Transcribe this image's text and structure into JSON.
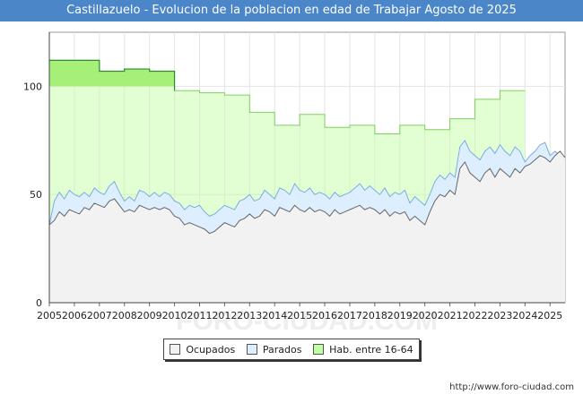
{
  "title": "Castillazuelo - Evolucion de la poblacion en edad de Trabajar Agosto de 2025",
  "credit": "http://www.foro-ciudad.com",
  "watermark": "FORO-CIUDAD.COM",
  "legend": [
    {
      "label": "Ocupados",
      "color": "#f2f2f2"
    },
    {
      "label": "Parados",
      "color": "#ddeeff"
    },
    {
      "label": "Hab. entre 16-64",
      "color": "#bfff9f"
    }
  ],
  "chart_data": {
    "type": "area",
    "title": "Castillazuelo - Evolucion de la poblacion en edad de Trabajar Agosto de 2025",
    "xlim": [
      2005,
      2025.6
    ],
    "ylim": [
      0,
      125
    ],
    "x_ticks": [
      "2005",
      "2006",
      "2007",
      "2008",
      "2009",
      "2010",
      "2011",
      "2012",
      "2013",
      "2014",
      "2015",
      "2016",
      "2017",
      "2018",
      "2019",
      "2020",
      "2021",
      "2022",
      "2023",
      "2024",
      "2025"
    ],
    "y_ticks": [
      0,
      50,
      100
    ],
    "grid": true,
    "legend_position": "bottom",
    "series": [
      {
        "name": "Hab. entre 16-64",
        "color": "#bfff9f",
        "x": [
          2005,
          2006,
          2007,
          2008,
          2009,
          2010,
          2011,
          2012,
          2013,
          2014,
          2015,
          2016,
          2017,
          2018,
          2019,
          2020,
          2021,
          2022,
          2023,
          2024
        ],
        "values": [
          112,
          112,
          107,
          108,
          107,
          98,
          97,
          96,
          88,
          82,
          87,
          81,
          82,
          78,
          82,
          80,
          85,
          94,
          98,
          0
        ]
      },
      {
        "name": "Parados",
        "color": "#ddeeff",
        "x": [
          2005.0,
          2005.2,
          2005.4,
          2005.6,
          2005.8,
          2006.0,
          2006.2,
          2006.4,
          2006.6,
          2006.8,
          2007.0,
          2007.2,
          2007.4,
          2007.6,
          2007.8,
          2008.0,
          2008.2,
          2008.4,
          2008.6,
          2008.8,
          2009.0,
          2009.2,
          2009.4,
          2009.6,
          2009.8,
          2010.0,
          2010.2,
          2010.4,
          2010.6,
          2010.8,
          2011.0,
          2011.2,
          2011.4,
          2011.6,
          2011.8,
          2012.0,
          2012.2,
          2012.4,
          2012.6,
          2012.8,
          2013.0,
          2013.2,
          2013.4,
          2013.6,
          2013.8,
          2014.0,
          2014.2,
          2014.4,
          2014.6,
          2014.8,
          2015.0,
          2015.2,
          2015.4,
          2015.6,
          2015.8,
          2016.0,
          2016.2,
          2016.4,
          2016.6,
          2016.8,
          2017.0,
          2017.2,
          2017.4,
          2017.6,
          2017.8,
          2018.0,
          2018.2,
          2018.4,
          2018.6,
          2018.8,
          2019.0,
          2019.2,
          2019.4,
          2019.6,
          2019.8,
          2020.0,
          2020.2,
          2020.4,
          2020.6,
          2020.8,
          2021.0,
          2021.2,
          2021.4,
          2021.6,
          2021.8,
          2022.0,
          2022.2,
          2022.4,
          2022.6,
          2022.8,
          2023.0,
          2023.2,
          2023.4,
          2023.6,
          2023.8,
          2024.0,
          2024.2,
          2024.4,
          2024.6,
          2024.8,
          2025.0,
          2025.2,
          2025.4,
          2025.6
        ],
        "values": [
          36,
          47,
          51,
          48,
          52,
          50,
          49,
          51,
          49,
          53,
          51,
          50,
          54,
          56,
          51,
          47,
          49,
          47,
          52,
          51,
          49,
          51,
          49,
          51,
          50,
          47,
          46,
          43,
          45,
          44,
          45,
          42,
          40,
          41,
          43,
          45,
          44,
          43,
          47,
          48,
          50,
          47,
          48,
          52,
          50,
          48,
          53,
          52,
          50,
          55,
          52,
          51,
          53,
          50,
          51,
          50,
          48,
          51,
          49,
          50,
          51,
          53,
          55,
          52,
          54,
          52,
          50,
          53,
          49,
          51,
          50,
          52,
          46,
          49,
          47,
          45,
          50,
          56,
          59,
          57,
          60,
          58,
          72,
          75,
          70,
          68,
          66,
          70,
          72,
          69,
          73,
          70,
          68,
          72,
          70,
          65,
          68,
          70,
          73,
          74,
          68,
          70,
          68,
          67
        ]
      },
      {
        "name": "Ocupados",
        "color": "#f2f2f2",
        "x": [
          2005.0,
          2005.2,
          2005.4,
          2005.6,
          2005.8,
          2006.0,
          2006.2,
          2006.4,
          2006.6,
          2006.8,
          2007.0,
          2007.2,
          2007.4,
          2007.6,
          2007.8,
          2008.0,
          2008.2,
          2008.4,
          2008.6,
          2008.8,
          2009.0,
          2009.2,
          2009.4,
          2009.6,
          2009.8,
          2010.0,
          2010.2,
          2010.4,
          2010.6,
          2010.8,
          2011.0,
          2011.2,
          2011.4,
          2011.6,
          2011.8,
          2012.0,
          2012.2,
          2012.4,
          2012.6,
          2012.8,
          2013.0,
          2013.2,
          2013.4,
          2013.6,
          2013.8,
          2014.0,
          2014.2,
          2014.4,
          2014.6,
          2014.8,
          2015.0,
          2015.2,
          2015.4,
          2015.6,
          2015.8,
          2016.0,
          2016.2,
          2016.4,
          2016.6,
          2016.8,
          2017.0,
          2017.2,
          2017.4,
          2017.6,
          2017.8,
          2018.0,
          2018.2,
          2018.4,
          2018.6,
          2018.8,
          2019.0,
          2019.2,
          2019.4,
          2019.6,
          2019.8,
          2020.0,
          2020.2,
          2020.4,
          2020.6,
          2020.8,
          2021.0,
          2021.2,
          2021.4,
          2021.6,
          2021.8,
          2022.0,
          2022.2,
          2022.4,
          2022.6,
          2022.8,
          2023.0,
          2023.2,
          2023.4,
          2023.6,
          2023.8,
          2024.0,
          2024.2,
          2024.4,
          2024.6,
          2024.8,
          2025.0,
          2025.2,
          2025.4,
          2025.6
        ],
        "values": [
          36,
          38,
          42,
          40,
          43,
          42,
          41,
          44,
          43,
          46,
          45,
          44,
          47,
          48,
          45,
          42,
          43,
          42,
          45,
          44,
          43,
          44,
          43,
          44,
          43,
          40,
          39,
          36,
          37,
          36,
          35,
          34,
          32,
          33,
          35,
          37,
          36,
          35,
          38,
          39,
          41,
          39,
          40,
          43,
          42,
          40,
          44,
          43,
          42,
          45,
          43,
          42,
          44,
          42,
          43,
          42,
          40,
          43,
          41,
          42,
          43,
          44,
          45,
          43,
          44,
          43,
          41,
          43,
          40,
          42,
          41,
          42,
          38,
          40,
          38,
          36,
          42,
          47,
          50,
          49,
          52,
          50,
          62,
          65,
          60,
          58,
          56,
          60,
          62,
          58,
          62,
          60,
          58,
          62,
          60,
          63,
          64,
          66,
          68,
          67,
          65,
          68,
          70,
          67
        ]
      }
    ]
  }
}
